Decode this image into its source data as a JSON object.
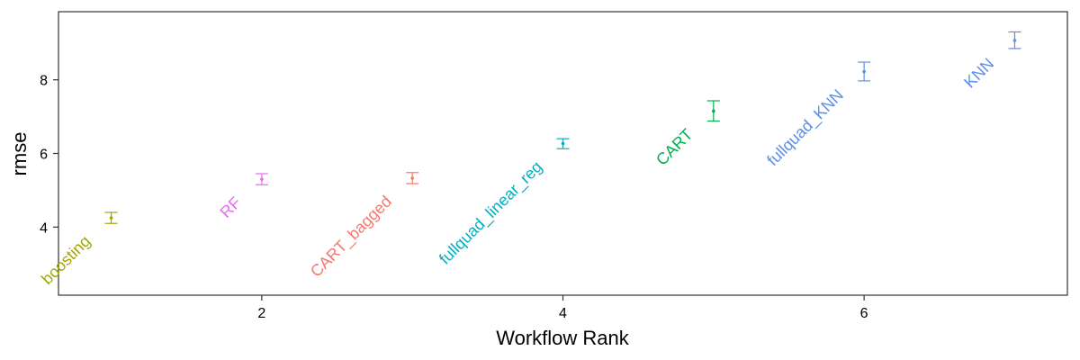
{
  "chart_data": {
    "type": "scatter",
    "title": "",
    "xlabel": "Workflow Rank",
    "ylabel": "rmse",
    "xlim": [
      0.65,
      7.35
    ],
    "ylim": [
      2.15,
      9.85
    ],
    "xticks": [
      2,
      4,
      6
    ],
    "yticks": [
      4,
      6,
      8
    ],
    "grid": false,
    "legend": "none",
    "points": [
      {
        "rank": 1,
        "label": "boosting",
        "rmse": 4.25,
        "lower": 4.1,
        "upper": 4.4,
        "color": "#A3A500"
      },
      {
        "rank": 2,
        "label": "RF",
        "rmse": 5.3,
        "lower": 5.15,
        "upper": 5.45,
        "color": "#E76BF3"
      },
      {
        "rank": 3,
        "label": "CART_bagged",
        "rmse": 5.33,
        "lower": 5.18,
        "upper": 5.48,
        "color": "#F8766D"
      },
      {
        "rank": 4,
        "label": "fullquad_linear_reg",
        "rmse": 6.27,
        "lower": 6.13,
        "upper": 6.4,
        "color": "#00B0C0"
      },
      {
        "rank": 5,
        "label": "CART",
        "rmse": 7.15,
        "lower": 6.88,
        "upper": 7.43,
        "color": "#00B050"
      },
      {
        "rank": 6,
        "label": "fullquad_KNN",
        "rmse": 8.22,
        "lower": 7.97,
        "upper": 8.48,
        "color": "#5B8FE8"
      },
      {
        "rank": 7,
        "label": "KNN",
        "rmse": 9.07,
        "lower": 8.85,
        "upper": 9.3,
        "color": "#5B8FE8"
      }
    ]
  }
}
